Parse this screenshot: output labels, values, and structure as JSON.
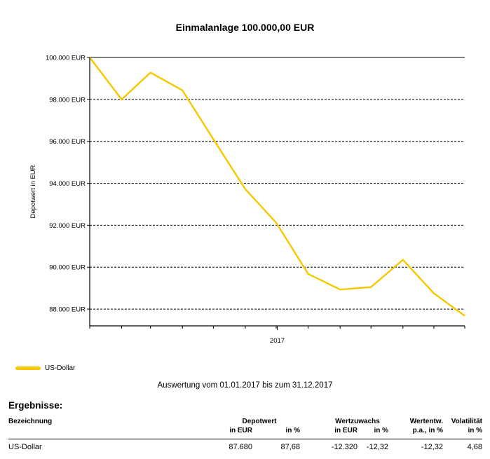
{
  "chart_data": {
    "type": "line",
    "title": "Einmalanlage 100.000,00 EUR",
    "ylabel": "Depotwert in EUR",
    "xlabel": "",
    "x_tick_labels": [
      "2017"
    ],
    "ylim": [
      87200,
      100000
    ],
    "y_ticks": [
      {
        "value": 100000,
        "label": "100.000 EUR"
      },
      {
        "value": 98000,
        "label": "98.000 EUR"
      },
      {
        "value": 96000,
        "label": "96.000 EUR"
      },
      {
        "value": 94000,
        "label": "94.000 EUR"
      },
      {
        "value": 92000,
        "label": "92.000 EUR"
      },
      {
        "value": 90000,
        "label": "90.000 EUR"
      },
      {
        "value": 88000,
        "label": "88.000 EUR"
      }
    ],
    "grid": "horizontal dashed",
    "legend_position": "bottom-left",
    "series": [
      {
        "name": "US-Dollar",
        "color": "#F7C800",
        "x": [
          "2017-01-01",
          "2017-02-01",
          "2017-03-01",
          "2017-04-01",
          "2017-05-01",
          "2017-06-01",
          "2017-07-01",
          "2017-08-01",
          "2017-09-01",
          "2017-10-01",
          "2017-11-01",
          "2017-12-01",
          "2017-12-31"
        ],
        "values": [
          100000,
          98000,
          99280,
          98430,
          96100,
          93720,
          92120,
          89680,
          88930,
          89050,
          90350,
          88750,
          87680
        ]
      }
    ]
  },
  "period_text": "Auswertung vom 01.01.2017 bis zum 31.12.2017",
  "results": {
    "title": "Ergebnisse:",
    "headers": {
      "bezeichnung": "Bezeichnung",
      "depotwert": "Depotwert",
      "depot_eur": "in EUR",
      "depot_pct": "in %",
      "wertzuwachs": "Wertzuwachs",
      "wz_eur": "in EUR",
      "wz_pct": "in %",
      "wertentw": "Wertentw.",
      "wertentw_pa": "p.a., in %",
      "volatilitaet": "Volatilität",
      "vol_pct": "in %"
    },
    "rows": [
      {
        "name": "US-Dollar",
        "depot_eur": "87.680",
        "depot_pct": "87,68",
        "wz_eur": "-12.320",
        "wz_pct": "-12,32",
        "wertentw_pa": "-12,32",
        "vol_pct": "4,68"
      }
    ]
  }
}
